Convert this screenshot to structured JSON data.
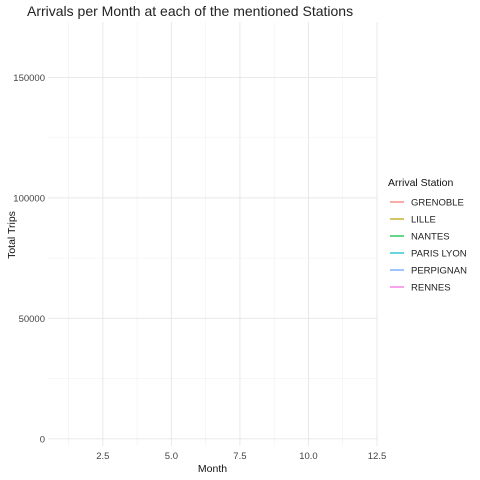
{
  "chart_data": {
    "type": "line",
    "title": "Arrivals per Month at each of the mentioned Stations",
    "xlabel": "Month",
    "ylabel": "Total Trips",
    "xlim": [
      0.5,
      12.5
    ],
    "ylim": [
      -3000,
      173000
    ],
    "x_ticks": [
      2.5,
      5.0,
      7.5,
      10.0,
      12.5
    ],
    "x_tick_labels": [
      "2.5",
      "5.0",
      "7.5",
      "10.0",
      "12.5"
    ],
    "y_ticks": [
      0,
      50000,
      100000,
      150000
    ],
    "y_tick_labels": [
      "0",
      "50000",
      "100000",
      "150000"
    ],
    "grid": true,
    "legend": {
      "title": "Arrival Station",
      "placement": "right"
    },
    "series": [
      {
        "name": "GRENOBLE",
        "color": "#F8766D",
        "x": [],
        "y": []
      },
      {
        "name": "LILLE",
        "color": "#B79F00",
        "x": [],
        "y": []
      },
      {
        "name": "NANTES",
        "color": "#00BA38",
        "x": [],
        "y": []
      },
      {
        "name": "PARIS LYON",
        "color": "#00BFC4",
        "x": [],
        "y": []
      },
      {
        "name": "PERPIGNAN",
        "color": "#619CFF",
        "x": [],
        "y": []
      },
      {
        "name": "RENNES",
        "color": "#F564E3",
        "x": [],
        "y": []
      }
    ]
  }
}
